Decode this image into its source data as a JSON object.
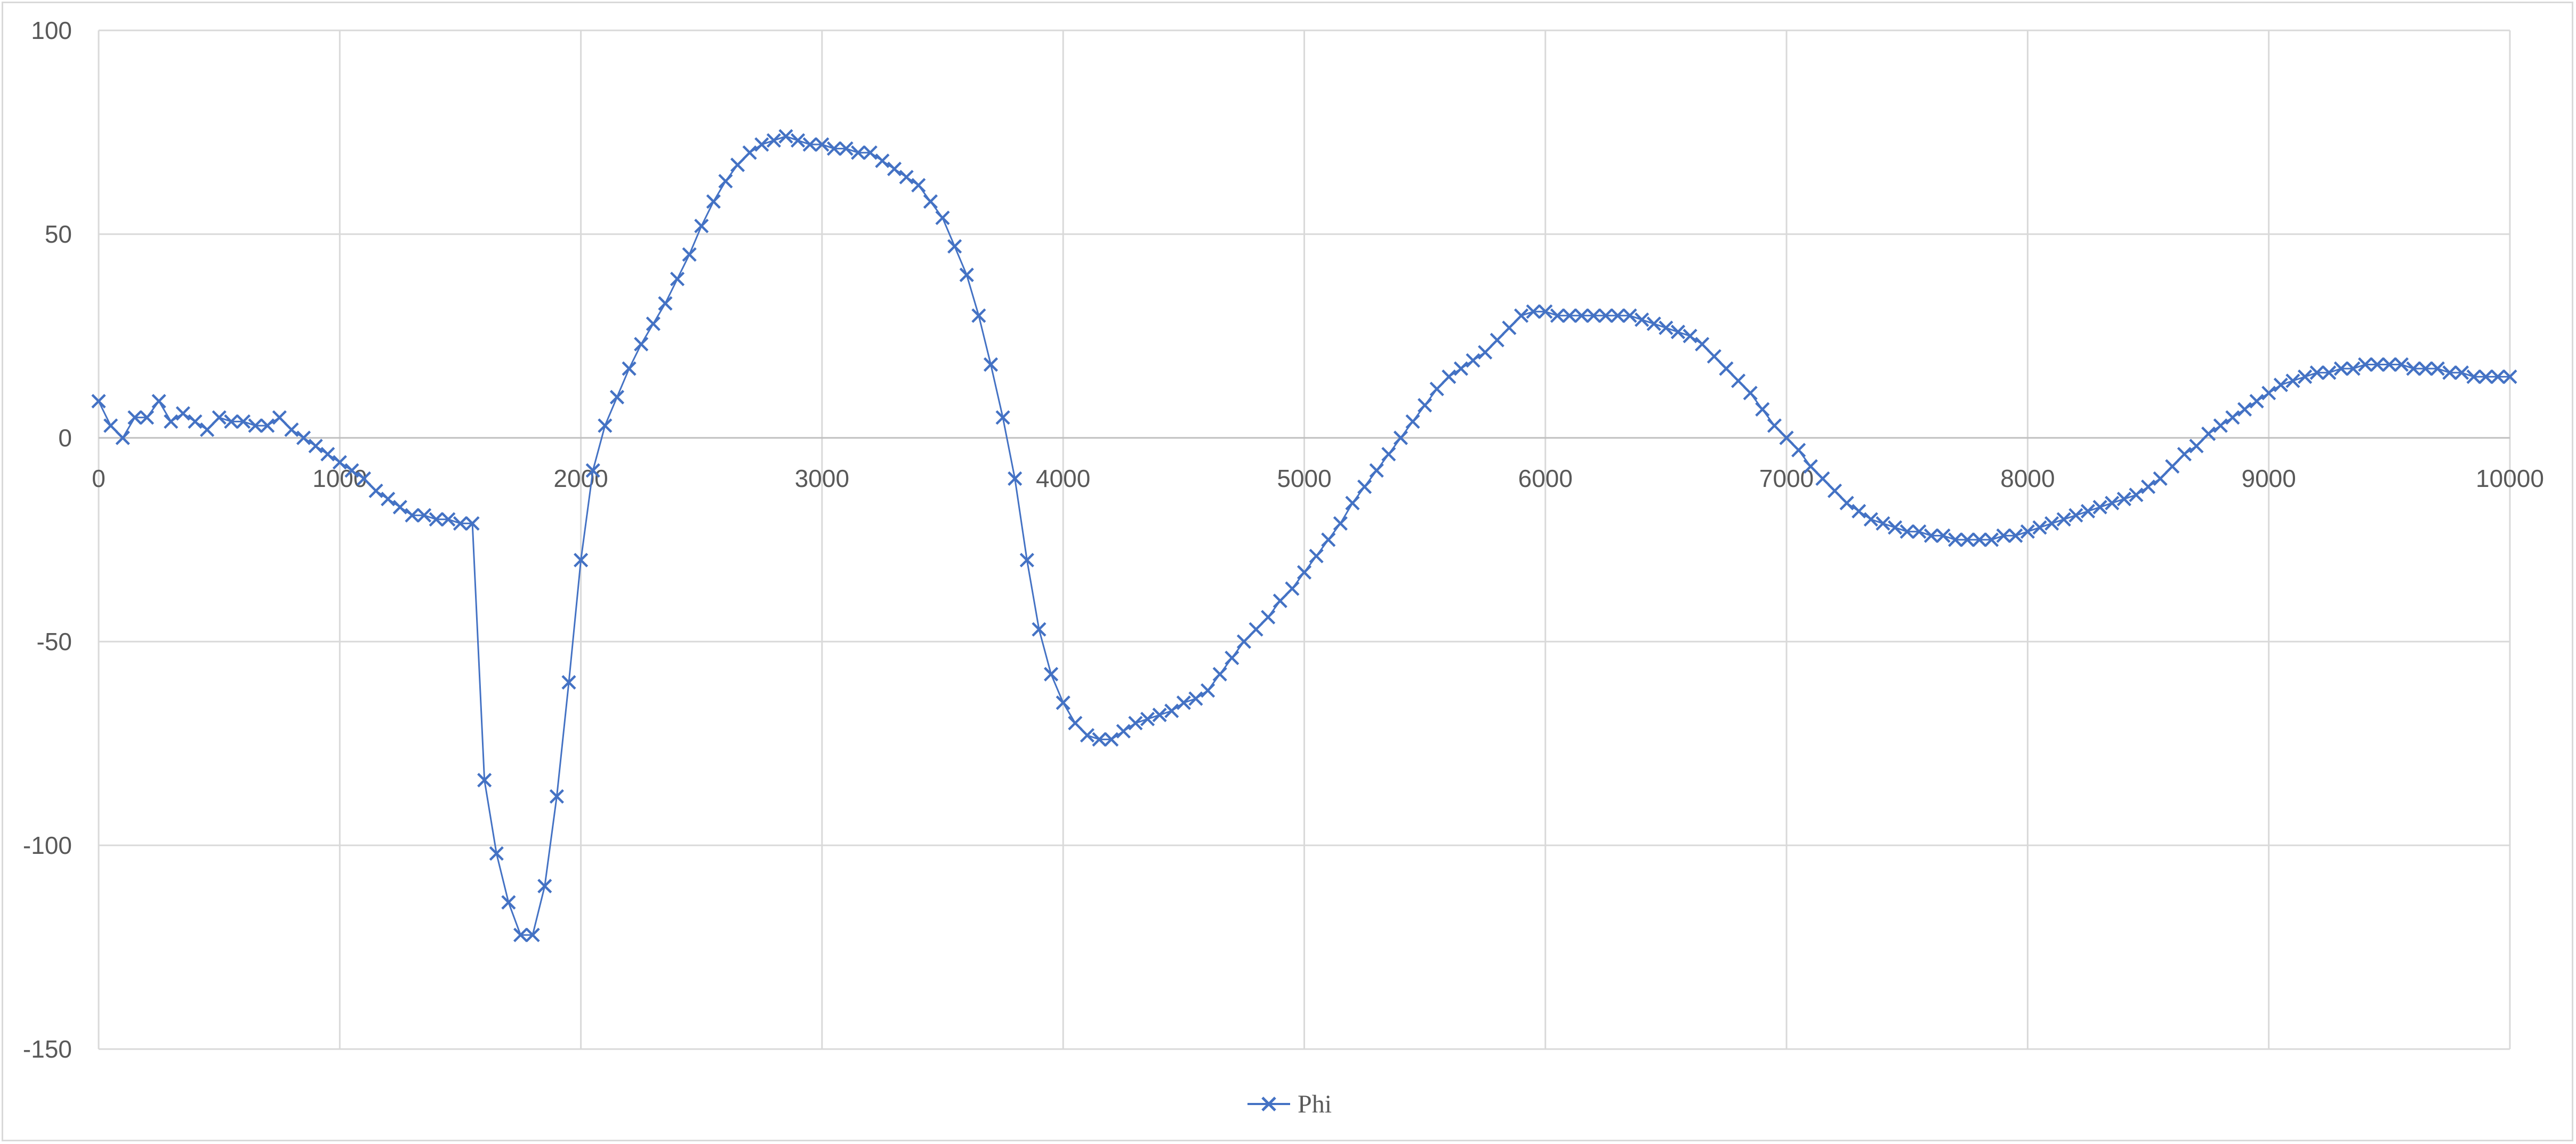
{
  "chart_data": {
    "type": "scatter",
    "title": "",
    "xlabel": "",
    "ylabel": "",
    "xlim": [
      0,
      10000
    ],
    "ylim": [
      -150,
      100
    ],
    "x_ticks": [
      0,
      1000,
      2000,
      3000,
      4000,
      5000,
      6000,
      7000,
      8000,
      9000,
      10000
    ],
    "y_ticks": [
      -150,
      -100,
      -50,
      0,
      50,
      100
    ],
    "grid": true,
    "legend_position": "bottom",
    "series": [
      {
        "name": "Phi",
        "color": "#4472C4",
        "marker": "x",
        "line": "thin-straight",
        "points": [
          [
            0,
            9
          ],
          [
            50,
            3
          ],
          [
            100,
            0
          ],
          [
            150,
            5
          ],
          [
            200,
            5
          ],
          [
            250,
            9
          ],
          [
            300,
            4
          ],
          [
            350,
            6
          ],
          [
            400,
            4
          ],
          [
            450,
            2
          ],
          [
            500,
            5
          ],
          [
            550,
            4
          ],
          [
            600,
            4
          ],
          [
            650,
            3
          ],
          [
            700,
            3
          ],
          [
            750,
            5
          ],
          [
            800,
            2
          ],
          [
            850,
            0
          ],
          [
            900,
            -2
          ],
          [
            950,
            -4
          ],
          [
            1000,
            -6
          ],
          [
            1050,
            -8
          ],
          [
            1100,
            -10
          ],
          [
            1150,
            -13
          ],
          [
            1200,
            -15
          ],
          [
            1250,
            -17
          ],
          [
            1300,
            -19
          ],
          [
            1350,
            -19
          ],
          [
            1400,
            -20
          ],
          [
            1450,
            -20
          ],
          [
            1500,
            -21
          ],
          [
            1550,
            -21
          ],
          [
            1600,
            -84
          ],
          [
            1650,
            -102
          ],
          [
            1700,
            -114
          ],
          [
            1750,
            -122
          ],
          [
            1800,
            -122
          ],
          [
            1850,
            -110
          ],
          [
            1900,
            -88
          ],
          [
            1950,
            -60
          ],
          [
            2000,
            -30
          ],
          [
            2050,
            -8
          ],
          [
            2100,
            3
          ],
          [
            2150,
            10
          ],
          [
            2200,
            17
          ],
          [
            2250,
            23
          ],
          [
            2300,
            28
          ],
          [
            2350,
            33
          ],
          [
            2400,
            39
          ],
          [
            2450,
            45
          ],
          [
            2500,
            52
          ],
          [
            2550,
            58
          ],
          [
            2600,
            63
          ],
          [
            2650,
            67
          ],
          [
            2700,
            70
          ],
          [
            2750,
            72
          ],
          [
            2800,
            73
          ],
          [
            2850,
            74
          ],
          [
            2900,
            73
          ],
          [
            2950,
            72
          ],
          [
            3000,
            72
          ],
          [
            3050,
            71
          ],
          [
            3100,
            71
          ],
          [
            3150,
            70
          ],
          [
            3200,
            70
          ],
          [
            3250,
            68
          ],
          [
            3300,
            66
          ],
          [
            3350,
            64
          ],
          [
            3400,
            62
          ],
          [
            3450,
            58
          ],
          [
            3500,
            54
          ],
          [
            3550,
            47
          ],
          [
            3600,
            40
          ],
          [
            3650,
            30
          ],
          [
            3700,
            18
          ],
          [
            3750,
            5
          ],
          [
            3800,
            -10
          ],
          [
            3850,
            -30
          ],
          [
            3900,
            -47
          ],
          [
            3950,
            -58
          ],
          [
            4000,
            -65
          ],
          [
            4050,
            -70
          ],
          [
            4100,
            -73
          ],
          [
            4150,
            -74
          ],
          [
            4200,
            -74
          ],
          [
            4250,
            -72
          ],
          [
            4300,
            -70
          ],
          [
            4350,
            -69
          ],
          [
            4400,
            -68
          ],
          [
            4450,
            -67
          ],
          [
            4500,
            -65
          ],
          [
            4550,
            -64
          ],
          [
            4600,
            -62
          ],
          [
            4650,
            -58
          ],
          [
            4700,
            -54
          ],
          [
            4750,
            -50
          ],
          [
            4800,
            -47
          ],
          [
            4850,
            -44
          ],
          [
            4900,
            -40
          ],
          [
            4950,
            -37
          ],
          [
            5000,
            -33
          ],
          [
            5050,
            -29
          ],
          [
            5100,
            -25
          ],
          [
            5150,
            -21
          ],
          [
            5200,
            -16
          ],
          [
            5250,
            -12
          ],
          [
            5300,
            -8
          ],
          [
            5350,
            -4
          ],
          [
            5400,
            0
          ],
          [
            5450,
            4
          ],
          [
            5500,
            8
          ],
          [
            5550,
            12
          ],
          [
            5600,
            15
          ],
          [
            5650,
            17
          ],
          [
            5700,
            19
          ],
          [
            5750,
            21
          ],
          [
            5800,
            24
          ],
          [
            5850,
            27
          ],
          [
            5900,
            30
          ],
          [
            5950,
            31
          ],
          [
            6000,
            31
          ],
          [
            6050,
            30
          ],
          [
            6100,
            30
          ],
          [
            6150,
            30
          ],
          [
            6200,
            30
          ],
          [
            6250,
            30
          ],
          [
            6300,
            30
          ],
          [
            6350,
            30
          ],
          [
            6400,
            29
          ],
          [
            6450,
            28
          ],
          [
            6500,
            27
          ],
          [
            6550,
            26
          ],
          [
            6600,
            25
          ],
          [
            6650,
            23
          ],
          [
            6700,
            20
          ],
          [
            6750,
            17
          ],
          [
            6800,
            14
          ],
          [
            6850,
            11
          ],
          [
            6900,
            7
          ],
          [
            6950,
            3
          ],
          [
            7000,
            0
          ],
          [
            7050,
            -3
          ],
          [
            7100,
            -7
          ],
          [
            7150,
            -10
          ],
          [
            7200,
            -13
          ],
          [
            7250,
            -16
          ],
          [
            7300,
            -18
          ],
          [
            7350,
            -20
          ],
          [
            7400,
            -21
          ],
          [
            7450,
            -22
          ],
          [
            7500,
            -23
          ],
          [
            7550,
            -23
          ],
          [
            7600,
            -24
          ],
          [
            7650,
            -24
          ],
          [
            7700,
            -25
          ],
          [
            7750,
            -25
          ],
          [
            7800,
            -25
          ],
          [
            7850,
            -25
          ],
          [
            7900,
            -24
          ],
          [
            7950,
            -24
          ],
          [
            8000,
            -23
          ],
          [
            8050,
            -22
          ],
          [
            8100,
            -21
          ],
          [
            8150,
            -20
          ],
          [
            8200,
            -19
          ],
          [
            8250,
            -18
          ],
          [
            8300,
            -17
          ],
          [
            8350,
            -16
          ],
          [
            8400,
            -15
          ],
          [
            8450,
            -14
          ],
          [
            8500,
            -12
          ],
          [
            8550,
            -10
          ],
          [
            8600,
            -7
          ],
          [
            8650,
            -4
          ],
          [
            8700,
            -2
          ],
          [
            8750,
            1
          ],
          [
            8800,
            3
          ],
          [
            8850,
            5
          ],
          [
            8900,
            7
          ],
          [
            8950,
            9
          ],
          [
            9000,
            11
          ],
          [
            9050,
            13
          ],
          [
            9100,
            14
          ],
          [
            9150,
            15
          ],
          [
            9200,
            16
          ],
          [
            9250,
            16
          ],
          [
            9300,
            17
          ],
          [
            9350,
            17
          ],
          [
            9400,
            18
          ],
          [
            9450,
            18
          ],
          [
            9500,
            18
          ],
          [
            9550,
            18
          ],
          [
            9600,
            17
          ],
          [
            9650,
            17
          ],
          [
            9700,
            17
          ],
          [
            9750,
            16
          ],
          [
            9800,
            16
          ],
          [
            9850,
            15
          ],
          [
            9900,
            15
          ],
          [
            9950,
            15
          ],
          [
            10000,
            15
          ]
        ]
      }
    ]
  }
}
